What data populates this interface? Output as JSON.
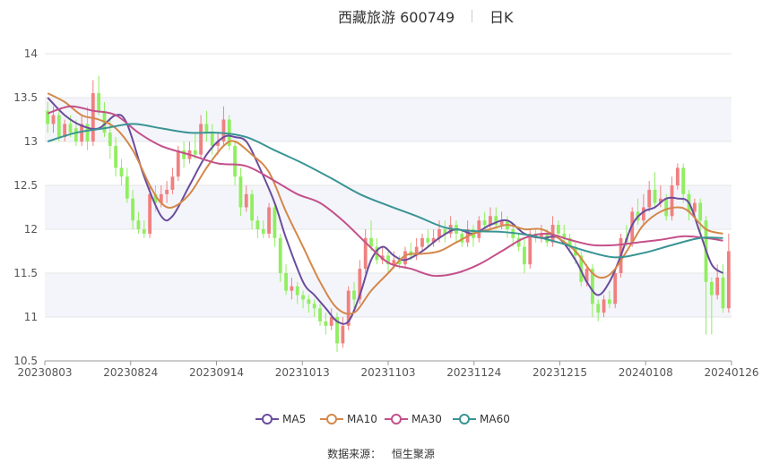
{
  "header": {
    "title": "西藏旅游 600749",
    "period": "日K"
  },
  "footer": {
    "source_label": "数据来源：",
    "source_value": "恒生聚源"
  },
  "chart_data": {
    "type": "candlestick",
    "title": "西藏旅游 600749",
    "period": "日K",
    "x_ticks": [
      "20230803",
      "20230824",
      "20230914",
      "20231013",
      "20231103",
      "20231124",
      "20231215",
      "20240108",
      "20240126"
    ],
    "ylim": [
      10.5,
      14
    ],
    "y_ticks": [
      10.5,
      11,
      11.5,
      12,
      12.5,
      13,
      13.5,
      14
    ],
    "grid": true,
    "legend_position": "bottom",
    "colors": {
      "up": "#f08080",
      "down": "#90ee60"
    },
    "candles": [
      [
        13.35,
        13.2,
        13.45,
        13.1
      ],
      [
        13.2,
        13.3,
        13.4,
        13.1
      ],
      [
        13.3,
        13.05,
        13.35,
        13.0
      ],
      [
        13.05,
        13.2,
        13.25,
        13.0
      ],
      [
        13.2,
        13.1,
        13.3,
        13.05
      ],
      [
        13.15,
        13.0,
        13.25,
        12.95
      ],
      [
        13.0,
        13.2,
        13.3,
        12.95
      ],
      [
        13.2,
        13.0,
        13.4,
        12.9
      ],
      [
        13.0,
        13.55,
        13.7,
        12.95
      ],
      [
        13.55,
        13.35,
        13.75,
        13.3
      ],
      [
        13.35,
        13.1,
        13.45,
        13.05
      ],
      [
        13.1,
        12.95,
        13.25,
        12.8
      ],
      [
        12.95,
        12.7,
        13.05,
        12.6
      ],
      [
        12.7,
        12.6,
        12.8,
        12.5
      ],
      [
        12.6,
        12.35,
        12.7,
        12.3
      ],
      [
        12.35,
        12.1,
        12.45,
        12.0
      ],
      [
        12.1,
        12.0,
        12.2,
        11.95
      ],
      [
        12.0,
        11.95,
        12.1,
        11.9
      ],
      [
        11.95,
        12.4,
        12.5,
        11.9
      ],
      [
        12.4,
        12.3,
        12.5,
        12.2
      ],
      [
        12.3,
        12.4,
        12.5,
        12.25
      ],
      [
        12.4,
        12.45,
        12.55,
        12.3
      ],
      [
        12.45,
        12.6,
        12.7,
        12.4
      ],
      [
        12.6,
        12.9,
        12.95,
        12.55
      ],
      [
        12.9,
        12.8,
        13.0,
        12.7
      ],
      [
        12.8,
        12.9,
        13.0,
        12.75
      ],
      [
        12.9,
        12.85,
        13.1,
        12.8
      ],
      [
        12.85,
        13.2,
        13.3,
        12.8
      ],
      [
        13.2,
        13.1,
        13.35,
        13.0
      ],
      [
        13.1,
        12.95,
        13.2,
        12.85
      ],
      [
        12.95,
        13.0,
        13.1,
        12.85
      ],
      [
        13.0,
        13.25,
        13.4,
        12.95
      ],
      [
        13.25,
        12.95,
        13.3,
        12.9
      ],
      [
        12.95,
        12.6,
        13.0,
        12.5
      ],
      [
        12.6,
        12.25,
        12.7,
        12.15
      ],
      [
        12.25,
        12.4,
        12.5,
        12.2
      ],
      [
        12.4,
        12.1,
        12.45,
        12.0
      ],
      [
        12.1,
        12.0,
        12.15,
        11.9
      ],
      [
        12.0,
        11.95,
        12.1,
        11.9
      ],
      [
        11.95,
        12.25,
        12.3,
        11.9
      ],
      [
        12.25,
        11.9,
        12.3,
        11.8
      ],
      [
        11.9,
        11.5,
        11.95,
        11.4
      ],
      [
        11.5,
        11.3,
        11.6,
        11.25
      ],
      [
        11.3,
        11.35,
        11.45,
        11.2
      ],
      [
        11.35,
        11.25,
        11.4,
        11.15
      ],
      [
        11.25,
        11.2,
        11.3,
        11.1
      ],
      [
        11.2,
        11.15,
        11.25,
        11.05
      ],
      [
        11.15,
        11.1,
        11.2,
        11.0
      ],
      [
        11.1,
        10.95,
        11.15,
        10.9
      ],
      [
        10.95,
        10.9,
        11.05,
        10.8
      ],
      [
        10.9,
        11.0,
        11.1,
        10.85
      ],
      [
        11.0,
        10.7,
        11.05,
        10.6
      ],
      [
        10.7,
        10.9,
        11.0,
        10.65
      ],
      [
        10.9,
        11.3,
        11.35,
        10.85
      ],
      [
        11.3,
        11.2,
        11.4,
        11.1
      ],
      [
        11.2,
        11.55,
        11.65,
        11.15
      ],
      [
        11.55,
        11.9,
        12.0,
        11.5
      ],
      [
        11.9,
        11.8,
        12.1,
        11.75
      ],
      [
        11.8,
        11.65,
        11.9,
        11.6
      ],
      [
        11.65,
        11.7,
        11.8,
        11.6
      ],
      [
        11.7,
        11.6,
        11.75,
        11.5
      ],
      [
        11.6,
        11.65,
        11.75,
        11.55
      ],
      [
        11.65,
        11.6,
        11.7,
        11.55
      ],
      [
        11.6,
        11.75,
        11.8,
        11.55
      ],
      [
        11.75,
        11.7,
        11.85,
        11.65
      ],
      [
        11.7,
        11.8,
        11.9,
        11.65
      ],
      [
        11.8,
        11.9,
        11.95,
        11.75
      ],
      [
        11.9,
        11.85,
        12.0,
        11.8
      ],
      [
        11.85,
        11.9,
        12.0,
        11.8
      ],
      [
        11.9,
        12.0,
        12.1,
        11.85
      ],
      [
        12.0,
        11.95,
        12.1,
        11.85
      ],
      [
        11.95,
        12.05,
        12.15,
        11.9
      ],
      [
        12.05,
        11.95,
        12.1,
        11.85
      ],
      [
        11.95,
        11.85,
        12.0,
        11.8
      ],
      [
        11.85,
        12.0,
        12.1,
        11.8
      ],
      [
        12.0,
        11.9,
        12.05,
        11.8
      ],
      [
        11.9,
        12.1,
        12.15,
        11.85
      ],
      [
        12.1,
        12.05,
        12.2,
        12.0
      ],
      [
        12.05,
        12.15,
        12.25,
        12.0
      ],
      [
        12.15,
        12.05,
        12.25,
        12.0
      ],
      [
        12.05,
        12.1,
        12.2,
        12.0
      ],
      [
        12.1,
        12.0,
        12.15,
        11.9
      ],
      [
        12.0,
        11.9,
        12.05,
        11.8
      ],
      [
        11.9,
        11.8,
        11.95,
        11.75
      ],
      [
        11.8,
        11.6,
        11.9,
        11.5
      ],
      [
        11.6,
        11.95,
        12.0,
        11.55
      ],
      [
        11.95,
        11.9,
        12.0,
        11.85
      ],
      [
        11.9,
        11.95,
        12.05,
        11.85
      ],
      [
        11.95,
        11.85,
        12.0,
        11.8
      ],
      [
        11.85,
        12.05,
        12.15,
        11.8
      ],
      [
        12.05,
        11.95,
        12.1,
        11.9
      ],
      [
        11.95,
        11.9,
        12.05,
        11.85
      ],
      [
        11.9,
        11.8,
        11.95,
        11.75
      ],
      [
        11.8,
        11.7,
        11.85,
        11.6
      ],
      [
        11.7,
        11.4,
        11.75,
        11.35
      ],
      [
        11.4,
        11.55,
        11.6,
        11.35
      ],
      [
        11.55,
        11.15,
        11.6,
        11.0
      ],
      [
        11.15,
        11.05,
        11.2,
        10.95
      ],
      [
        11.05,
        11.2,
        11.25,
        11.0
      ],
      [
        11.2,
        11.15,
        11.3,
        11.1
      ],
      [
        11.15,
        11.5,
        11.55,
        11.1
      ],
      [
        11.5,
        11.9,
        11.95,
        11.45
      ],
      [
        11.9,
        11.85,
        12.05,
        11.8
      ],
      [
        11.85,
        12.2,
        12.25,
        11.8
      ],
      [
        12.2,
        12.1,
        12.35,
        12.05
      ],
      [
        12.1,
        12.25,
        12.4,
        12.05
      ],
      [
        12.25,
        12.45,
        12.55,
        12.2
      ],
      [
        12.45,
        12.3,
        12.65,
        12.25
      ],
      [
        12.3,
        12.35,
        12.5,
        12.25
      ],
      [
        12.35,
        12.15,
        12.4,
        12.1
      ],
      [
        12.15,
        12.5,
        12.6,
        12.1
      ],
      [
        12.5,
        12.7,
        12.75,
        12.45
      ],
      [
        12.7,
        12.4,
        12.75,
        12.3
      ],
      [
        12.4,
        12.2,
        12.45,
        12.1
      ],
      [
        12.2,
        12.3,
        12.35,
        12.15
      ],
      [
        12.3,
        12.1,
        12.35,
        11.9
      ],
      [
        12.1,
        11.4,
        12.15,
        10.8
      ],
      [
        11.4,
        11.25,
        11.45,
        10.8
      ],
      [
        11.25,
        11.45,
        11.6,
        11.2
      ],
      [
        11.45,
        11.1,
        11.6,
        11.05
      ],
      [
        11.1,
        11.75,
        11.95,
        11.05
      ]
    ],
    "series": [
      {
        "name": "MA5",
        "color": "#6a4c9c",
        "values": [
          [
            0,
            13.5
          ],
          [
            3,
            13.3
          ],
          [
            6,
            13.18
          ],
          [
            9,
            13.15
          ],
          [
            12,
            13.3
          ],
          [
            14,
            13.2
          ],
          [
            17,
            12.6
          ],
          [
            20,
            12.15
          ],
          [
            22,
            12.15
          ],
          [
            25,
            12.5
          ],
          [
            28,
            12.85
          ],
          [
            31,
            13.05
          ],
          [
            33,
            13.05
          ],
          [
            35,
            13.0
          ],
          [
            37,
            12.75
          ],
          [
            40,
            12.3
          ],
          [
            42,
            11.9
          ],
          [
            45,
            11.4
          ],
          [
            47,
            11.25
          ],
          [
            49,
            11.1
          ],
          [
            51,
            10.95
          ],
          [
            53,
            10.95
          ],
          [
            55,
            11.25
          ],
          [
            57,
            11.65
          ],
          [
            59,
            11.8
          ],
          [
            61,
            11.7
          ],
          [
            63,
            11.65
          ],
          [
            66,
            11.75
          ],
          [
            69,
            11.9
          ],
          [
            72,
            12.0
          ],
          [
            75,
            11.95
          ],
          [
            78,
            12.05
          ],
          [
            81,
            12.1
          ],
          [
            84,
            11.95
          ],
          [
            87,
            11.9
          ],
          [
            90,
            11.9
          ],
          [
            93,
            11.65
          ],
          [
            95,
            11.4
          ],
          [
            97,
            11.25
          ],
          [
            99,
            11.4
          ],
          [
            101,
            11.7
          ],
          [
            103,
            12.05
          ],
          [
            105,
            12.2
          ],
          [
            107,
            12.25
          ],
          [
            109,
            12.35
          ],
          [
            111,
            12.35
          ],
          [
            113,
            12.3
          ],
          [
            115,
            11.95
          ],
          [
            117,
            11.6
          ],
          [
            119,
            11.5
          ]
        ]
      },
      {
        "name": "MA10",
        "color": "#d4884a",
        "values": [
          [
            0,
            13.55
          ],
          [
            3,
            13.45
          ],
          [
            6,
            13.3
          ],
          [
            9,
            13.25
          ],
          [
            12,
            13.15
          ],
          [
            15,
            12.9
          ],
          [
            18,
            12.5
          ],
          [
            20,
            12.3
          ],
          [
            22,
            12.25
          ],
          [
            25,
            12.4
          ],
          [
            28,
            12.7
          ],
          [
            31,
            12.95
          ],
          [
            33,
            13.0
          ],
          [
            36,
            12.85
          ],
          [
            39,
            12.65
          ],
          [
            42,
            12.2
          ],
          [
            45,
            11.8
          ],
          [
            48,
            11.4
          ],
          [
            51,
            11.1
          ],
          [
            54,
            11.05
          ],
          [
            57,
            11.3
          ],
          [
            60,
            11.5
          ],
          [
            63,
            11.7
          ],
          [
            66,
            11.72
          ],
          [
            69,
            11.75
          ],
          [
            72,
            11.85
          ],
          [
            75,
            11.95
          ],
          [
            78,
            12.0
          ],
          [
            81,
            12.05
          ],
          [
            84,
            12.0
          ],
          [
            87,
            12.0
          ],
          [
            90,
            11.9
          ],
          [
            93,
            11.75
          ],
          [
            96,
            11.5
          ],
          [
            98,
            11.45
          ],
          [
            100,
            11.55
          ],
          [
            103,
            11.85
          ],
          [
            105,
            12.05
          ],
          [
            108,
            12.2
          ],
          [
            111,
            12.25
          ],
          [
            113,
            12.2
          ],
          [
            116,
            12.0
          ],
          [
            119,
            11.95
          ]
        ]
      },
      {
        "name": "MA30",
        "color": "#c4508a",
        "values": [
          [
            0,
            13.32
          ],
          [
            4,
            13.4
          ],
          [
            8,
            13.35
          ],
          [
            12,
            13.3
          ],
          [
            16,
            13.1
          ],
          [
            20,
            12.95
          ],
          [
            25,
            12.85
          ],
          [
            30,
            12.75
          ],
          [
            35,
            12.72
          ],
          [
            40,
            12.55
          ],
          [
            44,
            12.4
          ],
          [
            48,
            12.3
          ],
          [
            52,
            12.1
          ],
          [
            56,
            11.85
          ],
          [
            60,
            11.62
          ],
          [
            64,
            11.55
          ],
          [
            68,
            11.47
          ],
          [
            72,
            11.5
          ],
          [
            76,
            11.6
          ],
          [
            80,
            11.75
          ],
          [
            84,
            11.9
          ],
          [
            88,
            11.95
          ],
          [
            92,
            11.88
          ],
          [
            96,
            11.82
          ],
          [
            100,
            11.82
          ],
          [
            104,
            11.85
          ],
          [
            108,
            11.88
          ],
          [
            112,
            11.92
          ],
          [
            116,
            11.9
          ],
          [
            119,
            11.87
          ]
        ]
      },
      {
        "name": "MA60",
        "color": "#3a9494",
        "values": [
          [
            0,
            13.0
          ],
          [
            5,
            13.1
          ],
          [
            10,
            13.15
          ],
          [
            15,
            13.2
          ],
          [
            20,
            13.15
          ],
          [
            25,
            13.1
          ],
          [
            30,
            13.1
          ],
          [
            35,
            13.05
          ],
          [
            40,
            12.9
          ],
          [
            45,
            12.75
          ],
          [
            50,
            12.58
          ],
          [
            55,
            12.4
          ],
          [
            60,
            12.27
          ],
          [
            65,
            12.15
          ],
          [
            70,
            12.02
          ],
          [
            75,
            11.98
          ],
          [
            80,
            11.97
          ],
          [
            85,
            11.93
          ],
          [
            90,
            11.85
          ],
          [
            95,
            11.75
          ],
          [
            100,
            11.68
          ],
          [
            105,
            11.73
          ],
          [
            110,
            11.82
          ],
          [
            115,
            11.9
          ],
          [
            119,
            11.9
          ]
        ]
      }
    ]
  }
}
